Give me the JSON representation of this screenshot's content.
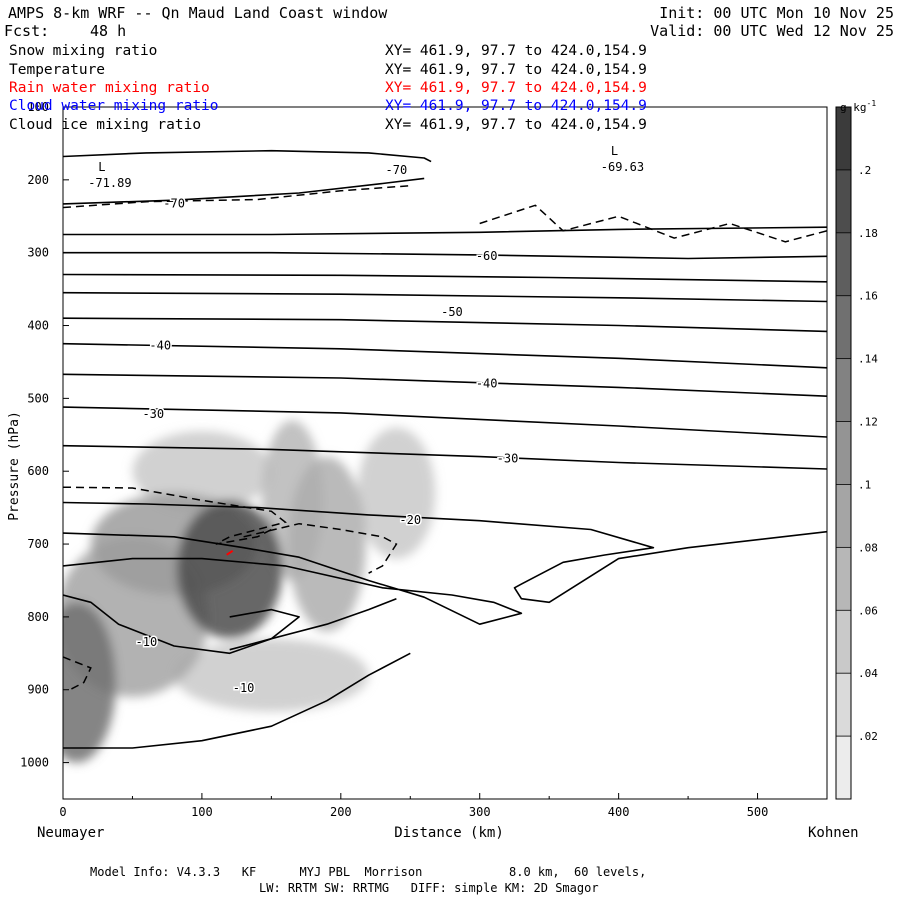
{
  "header": {
    "title": "AMPS 8-km WRF -- Qn Maud Land Coast window",
    "fcst_label": "Fcst:",
    "fcst_value": "48 h",
    "init": "Init: 00 UTC Mon 10 Nov 25",
    "valid": "Valid: 00 UTC Wed 12 Nov 25"
  },
  "fields": [
    {
      "name": "Snow mixing ratio",
      "xy": "XY= 461.9, 97.7 to 424.0,154.9",
      "color": "#000000"
    },
    {
      "name": "Temperature",
      "xy": "XY= 461.9, 97.7 to 424.0,154.9",
      "color": "#000000"
    },
    {
      "name": "Rain water mixing ratio",
      "xy": "XY= 461.9, 97.7 to 424.0,154.9",
      "color": "#ff0000"
    },
    {
      "name": "Cloud water mixing ratio",
      "xy": "XY= 461.9, 97.7 to 424.0,154.9",
      "color": "#0000ff"
    },
    {
      "name": "Cloud ice mixing ratio",
      "xy": "XY= 461.9, 97.7 to 424.0,154.9",
      "color": "#000000"
    }
  ],
  "footer": {
    "line1": "Model Info: V4.3.3   KF      MYJ PBL  Morrison            8.0 km,  60 levels,",
    "line2": "LW: RRTM SW: RRTMG   DIFF: simple KM: 2D Smagor"
  },
  "chart_data": {
    "type": "cross-section contour",
    "xlabel": "Distance (km)",
    "ylabel": "Pressure (hPa)",
    "xlim": [
      0,
      550
    ],
    "ylim": [
      1050,
      100
    ],
    "x_ticks": [
      0,
      100,
      200,
      300,
      400,
      500
    ],
    "y_ticks": [
      100,
      200,
      300,
      400,
      500,
      600,
      700,
      800,
      900,
      1000
    ],
    "x_left_label": "Neumayer",
    "x_right_label": "Kohnen",
    "colorbar": {
      "unit_label": "g kg",
      "unit_exp": "-1",
      "ticks": [
        ".02",
        ".04",
        ".06",
        ".08",
        ".1",
        ".12",
        ".14",
        ".16",
        ".18",
        ".2"
      ],
      "values": [
        0.02,
        0.04,
        0.06,
        0.08,
        0.1,
        0.12,
        0.14,
        0.16,
        0.18,
        0.2
      ],
      "min": 0,
      "max": 0.22
    },
    "snow_blobs": [
      {
        "x": 120,
        "p": 735,
        "rx": 38,
        "rp": 95,
        "q": 0.19
      },
      {
        "x": 80,
        "p": 700,
        "rx": 60,
        "rp": 70,
        "q": 0.1
      },
      {
        "x": 10,
        "p": 890,
        "rx": 28,
        "rp": 110,
        "q": 0.15
      },
      {
        "x": 50,
        "p": 800,
        "rx": 55,
        "rp": 110,
        "q": 0.09
      },
      {
        "x": 165,
        "p": 640,
        "rx": 22,
        "rp": 110,
        "q": 0.07
      },
      {
        "x": 190,
        "p": 700,
        "rx": 28,
        "rp": 120,
        "q": 0.08
      },
      {
        "x": 240,
        "p": 630,
        "rx": 28,
        "rp": 90,
        "q": 0.05
      },
      {
        "x": 100,
        "p": 600,
        "rx": 50,
        "rp": 55,
        "q": 0.05
      },
      {
        "x": 150,
        "p": 880,
        "rx": 70,
        "rp": 50,
        "q": 0.05
      }
    ],
    "isotherms": [
      {
        "pts": [
          [
            0,
            168
          ],
          [
            60,
            163
          ],
          [
            150,
            160
          ],
          [
            220,
            163
          ],
          [
            260,
            170
          ],
          [
            265,
            175
          ]
        ]
      },
      {
        "pts": [
          [
            0,
            233
          ],
          [
            80,
            228
          ],
          [
            170,
            218
          ],
          [
            230,
            205
          ],
          [
            260,
            198
          ]
        ]
      },
      {
        "pts": [
          [
            0,
            275
          ],
          [
            150,
            275
          ],
          [
            300,
            272
          ],
          [
            400,
            268
          ],
          [
            550,
            265
          ]
        ]
      },
      {
        "pts": [
          [
            0,
            300
          ],
          [
            150,
            300
          ],
          [
            300,
            303
          ],
          [
            450,
            308
          ],
          [
            550,
            305
          ]
        ]
      },
      {
        "pts": [
          [
            0,
            330
          ],
          [
            200,
            331
          ],
          [
            350,
            334
          ],
          [
            550,
            340
          ]
        ]
      },
      {
        "pts": [
          [
            0,
            355
          ],
          [
            200,
            357
          ],
          [
            400,
            362
          ],
          [
            550,
            367
          ]
        ]
      },
      {
        "pts": [
          [
            0,
            390
          ],
          [
            200,
            392
          ],
          [
            400,
            400
          ],
          [
            550,
            408
          ]
        ]
      },
      {
        "pts": [
          [
            0,
            425
          ],
          [
            200,
            432
          ],
          [
            400,
            445
          ],
          [
            550,
            458
          ]
        ]
      },
      {
        "pts": [
          [
            0,
            467
          ],
          [
            200,
            472
          ],
          [
            400,
            485
          ],
          [
            550,
            497
          ]
        ]
      },
      {
        "pts": [
          [
            0,
            512
          ],
          [
            200,
            520
          ],
          [
            400,
            538
          ],
          [
            550,
            553
          ]
        ]
      },
      {
        "pts": [
          [
            0,
            565
          ],
          [
            150,
            570
          ],
          [
            300,
            580
          ],
          [
            400,
            588
          ],
          [
            550,
            597
          ]
        ]
      },
      {
        "pts": [
          [
            0,
            643
          ],
          [
            60,
            645
          ],
          [
            140,
            650
          ],
          [
            220,
            660
          ],
          [
            300,
            668
          ],
          [
            380,
            680
          ],
          [
            425,
            705
          ],
          [
            390,
            715
          ],
          [
            360,
            725
          ],
          [
            345,
            740
          ],
          [
            330,
            755
          ],
          [
            325,
            760
          ],
          [
            330,
            775
          ],
          [
            350,
            780
          ],
          [
            400,
            720
          ],
          [
            450,
            705
          ],
          [
            550,
            683
          ]
        ]
      },
      {
        "pts": [
          [
            0,
            685
          ],
          [
            80,
            690
          ],
          [
            130,
            705
          ],
          [
            170,
            718
          ],
          [
            220,
            750
          ],
          [
            260,
            773
          ],
          [
            300,
            810
          ],
          [
            330,
            795
          ],
          [
            310,
            780
          ],
          [
            280,
            770
          ],
          [
            230,
            760
          ],
          [
            160,
            730
          ],
          [
            100,
            720
          ],
          [
            50,
            720
          ],
          [
            0,
            730
          ]
        ]
      },
      {
        "pts": [
          [
            0,
            770
          ],
          [
            20,
            780
          ],
          [
            40,
            810
          ],
          [
            80,
            840
          ],
          [
            120,
            850
          ],
          [
            150,
            830
          ],
          [
            190,
            810
          ],
          [
            220,
            790
          ],
          [
            240,
            775
          ]
        ]
      },
      {
        "pts": [
          [
            0,
            980
          ],
          [
            50,
            980
          ],
          [
            100,
            970
          ],
          [
            150,
            950
          ],
          [
            190,
            915
          ],
          [
            220,
            880
          ],
          [
            250,
            850
          ]
        ]
      },
      {
        "pts": [
          [
            120,
            845
          ],
          [
            150,
            830
          ],
          [
            170,
            800
          ],
          [
            150,
            790
          ],
          [
            120,
            800
          ]
        ]
      }
    ],
    "dashed": [
      {
        "pts": [
          [
            0,
            238
          ],
          [
            60,
            230
          ],
          [
            140,
            227
          ],
          [
            200,
            215
          ],
          [
            250,
            208
          ]
        ]
      },
      {
        "pts": [
          [
            300,
            260
          ],
          [
            340,
            235
          ],
          [
            360,
            270
          ],
          [
            400,
            250
          ],
          [
            440,
            280
          ],
          [
            480,
            260
          ],
          [
            520,
            285
          ],
          [
            550,
            270
          ]
        ]
      },
      {
        "pts": [
          [
            0,
            622
          ],
          [
            50,
            623
          ],
          [
            100,
            640
          ],
          [
            150,
            655
          ],
          [
            160,
            670
          ],
          [
            120,
            690
          ],
          [
            110,
            700
          ],
          [
            140,
            690
          ],
          [
            150,
            680
          ]
        ]
      },
      {
        "pts": [
          [
            130,
            690
          ],
          [
            170,
            672
          ],
          [
            200,
            680
          ],
          [
            230,
            690
          ],
          [
            240,
            700
          ],
          [
            235,
            715
          ],
          [
            230,
            730
          ],
          [
            220,
            740
          ]
        ]
      },
      {
        "pts": [
          [
            0,
            855
          ],
          [
            20,
            870
          ],
          [
            15,
            890
          ],
          [
            5,
            900
          ]
        ]
      }
    ],
    "contour_labels": [
      {
        "x": 240,
        "p": 187,
        "text": "-70"
      },
      {
        "x": 80,
        "p": 233,
        "text": "-70"
      },
      {
        "x": 305,
        "p": 305,
        "text": "-60"
      },
      {
        "x": 280,
        "p": 382,
        "text": "-50"
      },
      {
        "x": 70,
        "p": 428,
        "text": "-40"
      },
      {
        "x": 305,
        "p": 480,
        "text": "-40"
      },
      {
        "x": 65,
        "p": 522,
        "text": "-30"
      },
      {
        "x": 320,
        "p": 583,
        "text": "-30"
      },
      {
        "x": 250,
        "p": 668,
        "text": "-20"
      },
      {
        "x": 60,
        "p": 835,
        "text": "-10"
      },
      {
        "x": 130,
        "p": 898,
        "text": "-10"
      }
    ],
    "extrema": [
      {
        "x": 28,
        "p": 207,
        "letter": "L",
        "value": "-71.89"
      },
      {
        "x": 397,
        "p": 185,
        "letter": "L",
        "value": "-69.63"
      }
    ],
    "rain": [
      {
        "x": 120,
        "p": 712,
        "q": 0.01
      }
    ]
  }
}
